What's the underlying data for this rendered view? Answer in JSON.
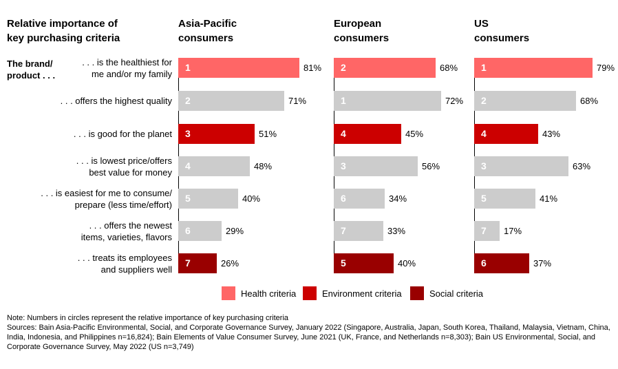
{
  "header": {
    "main_title": "Relative importance of\nkey purchasing criteria",
    "brand_label": "The brand/\nproduct . . ."
  },
  "colors": {
    "health": "#ff6666",
    "environment": "#cc0000",
    "social": "#990000",
    "other": "#cccccc"
  },
  "legend": {
    "items": [
      {
        "label": "Health criteria",
        "color": "#ff6666"
      },
      {
        "label": "Environment  criteria",
        "color": "#cc0000"
      },
      {
        "label": "Social criteria",
        "color": "#990000"
      }
    ]
  },
  "chart_data": {
    "type": "bar",
    "orientation": "horizontal",
    "categories": [
      ". . . is the healthiest for\nme and/or my family",
      ". . . offers the highest quality",
      ". . . is good for the planet",
      ". . . is lowest price/offers\nbest value for money",
      ". . . is easiest for me to consume/\nprepare (less time/effort)",
      ". . . offers the newest\nitems, varieties, flavors",
      ". . . treats its employees\nand suppliers well"
    ],
    "category_types": [
      "health",
      "other",
      "environment",
      "other",
      "other",
      "other",
      "social"
    ],
    "series": [
      {
        "name": "Asia-Pacific\nconsumers",
        "values": [
          81,
          71,
          51,
          48,
          40,
          29,
          26
        ],
        "ranks": [
          "1",
          "2",
          "3",
          "4",
          "5",
          "6",
          "7"
        ]
      },
      {
        "name": "European\nconsumers",
        "values": [
          68,
          72,
          45,
          56,
          34,
          33,
          40
        ],
        "ranks": [
          "2",
          "1",
          "4",
          "3",
          "6",
          "7",
          "5"
        ]
      },
      {
        "name": "US\nconsumers",
        "values": [
          79,
          68,
          43,
          63,
          41,
          17,
          37
        ],
        "ranks": [
          "1",
          "2",
          "4",
          "3",
          "5",
          "7",
          "6"
        ]
      }
    ],
    "value_suffix": "%",
    "xlim": [
      0,
      100
    ]
  },
  "notes": {
    "note": "Note: Numbers in circles represent the relative importance of key purchasing criteria",
    "sources": "Sources: Bain Asia-Pacific Environmental, Social, and Corporate Governance Survey, January 2022 (Singapore, Australia, Japan, South Korea, Thailand, Malaysia, Vietnam, China, India, Indonesia, and Philippines n=16,824); Bain Elements of Value Consumer Survey, June 2021 (UK, France, and Netherlands n=8,303); Bain US Environmental, Social, and Corporate Governance Survey, May 2022 (US n=3,749)"
  }
}
